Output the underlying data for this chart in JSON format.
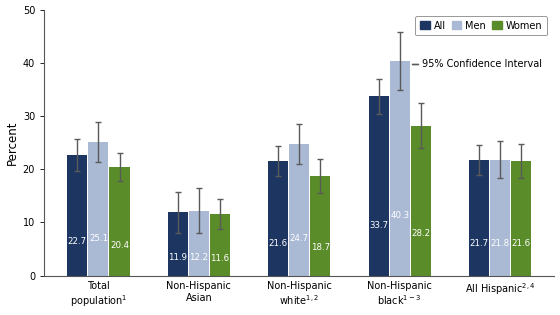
{
  "values": {
    "All": [
      22.7,
      11.9,
      21.6,
      33.7,
      21.7
    ],
    "Men": [
      25.1,
      12.2,
      24.7,
      40.3,
      21.8
    ],
    "Women": [
      20.4,
      11.6,
      18.7,
      28.2,
      21.6
    ]
  },
  "ci": {
    "All": [
      3.0,
      3.8,
      2.8,
      3.3,
      2.8
    ],
    "Men": [
      3.8,
      4.2,
      3.8,
      5.5,
      3.5
    ],
    "Women": [
      2.6,
      2.8,
      3.2,
      4.2,
      3.2
    ]
  },
  "colors": {
    "All": "#1c3661",
    "Men": "#aab9d4",
    "Women": "#5b8c2a"
  },
  "ylabel": "Percent",
  "ylim": [
    0,
    50
  ],
  "yticks": [
    0,
    10,
    20,
    30,
    40,
    50
  ],
  "bar_width": 0.2,
  "background_color": "#ffffff",
  "error_color": "#5a5a5a",
  "label_fontsize": 6.2,
  "tick_fontsize": 7.0,
  "ylabel_fontsize": 8.5
}
